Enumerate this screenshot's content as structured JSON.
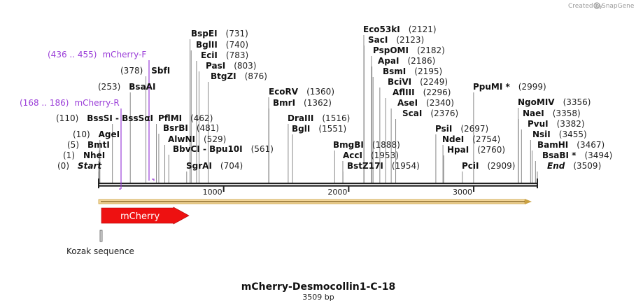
{
  "credit": {
    "text": "Created by",
    "brand": "SnapGene",
    "icon": "snapgene-logo-icon"
  },
  "plasmid": {
    "name": "mCherry-Desmocollin1-C-18",
    "length_label": "3509 bp",
    "length": 3509
  },
  "ruler": {
    "ticks": [
      {
        "pos": 1000,
        "label": "1000"
      },
      {
        "pos": 2000,
        "label": "2000"
      },
      {
        "pos": 3000,
        "label": "3000"
      }
    ]
  },
  "sites": [
    {
      "name": "Start",
      "pos_label": "(0)",
      "pos": 0,
      "italic": true
    },
    {
      "name": "NheI",
      "pos_label": "(1)",
      "pos": 1
    },
    {
      "name": "BmtI",
      "pos_label": "(5)",
      "pos": 5
    },
    {
      "name": "AgeI",
      "pos_label": "(10)",
      "pos": 10
    },
    {
      "name": "BssSI  -  BssSαI",
      "pos_label": "(110)",
      "pos": 110
    },
    {
      "name": "BsaAI",
      "pos_label": "(253)",
      "pos": 253
    },
    {
      "name": "SbfI",
      "pos_label": "(378)",
      "pos": 378
    },
    {
      "name": "PflMI",
      "pos_label": "(462)",
      "pos": 462
    },
    {
      "name": "BsrBI",
      "pos_label": "(481)",
      "pos": 481
    },
    {
      "name": "AlwNI",
      "pos_label": "(529)",
      "pos": 529
    },
    {
      "name": "BbvCI  -  Bpu10I",
      "pos_label": "(561)",
      "pos": 561
    },
    {
      "name": "SgrAI",
      "pos_label": "(704)",
      "pos": 704
    },
    {
      "name": "BspEI",
      "pos_label": "(731)",
      "pos": 731
    },
    {
      "name": "BglII",
      "pos_label": "(740)",
      "pos": 740
    },
    {
      "name": "EciI",
      "pos_label": "(783)",
      "pos": 783
    },
    {
      "name": "PasI",
      "pos_label": "(803)",
      "pos": 803
    },
    {
      "name": "BtgZI",
      "pos_label": "(876)",
      "pos": 876
    },
    {
      "name": "EcoRV",
      "pos_label": "(1360)",
      "pos": 1360
    },
    {
      "name": "BmrI",
      "pos_label": "(1362)",
      "pos": 1362
    },
    {
      "name": "DraIII",
      "pos_label": "(1516)",
      "pos": 1516
    },
    {
      "name": "BglI",
      "pos_label": "(1551)",
      "pos": 1551
    },
    {
      "name": "BmgBI",
      "pos_label": "(1888)",
      "pos": 1888
    },
    {
      "name": "AccI",
      "pos_label": "(1953)",
      "pos": 1953
    },
    {
      "name": "BstZ17I",
      "pos_label": "(1954)",
      "pos": 1954
    },
    {
      "name": "Eco53kI",
      "pos_label": "(2121)",
      "pos": 2121
    },
    {
      "name": "SacI",
      "pos_label": "(2123)",
      "pos": 2123
    },
    {
      "name": "PspOMI",
      "pos_label": "(2182)",
      "pos": 2182
    },
    {
      "name": "ApaI",
      "pos_label": "(2186)",
      "pos": 2186
    },
    {
      "name": "BsmI",
      "pos_label": "(2195)",
      "pos": 2195
    },
    {
      "name": "BciVI",
      "pos_label": "(2249)",
      "pos": 2249
    },
    {
      "name": "AflIII",
      "pos_label": "(2296)",
      "pos": 2296
    },
    {
      "name": "AseI",
      "pos_label": "(2340)",
      "pos": 2340
    },
    {
      "name": "ScaI",
      "pos_label": "(2376)",
      "pos": 2376
    },
    {
      "name": "PsiI",
      "pos_label": "(2697)",
      "pos": 2697
    },
    {
      "name": "NdeI",
      "pos_label": "(2754)",
      "pos": 2754
    },
    {
      "name": "HpaI",
      "pos_label": "(2760)",
      "pos": 2760
    },
    {
      "name": "PciI",
      "pos_label": "(2909)",
      "pos": 2909
    },
    {
      "name": "PpuMI *",
      "pos_label": "(2999)",
      "pos": 2999
    },
    {
      "name": "NgoMIV",
      "pos_label": "(3356)",
      "pos": 3356
    },
    {
      "name": "NaeI",
      "pos_label": "(3358)",
      "pos": 3358
    },
    {
      "name": "PvuI",
      "pos_label": "(3382)",
      "pos": 3382
    },
    {
      "name": "NsiI",
      "pos_label": "(3455)",
      "pos": 3455
    },
    {
      "name": "BamHI",
      "pos_label": "(3467)",
      "pos": 3467
    },
    {
      "name": "BsaBI *",
      "pos_label": "(3494)",
      "pos": 3494
    },
    {
      "name": "End",
      "pos_label": "(3509)",
      "pos": 3509,
      "italic": true
    }
  ],
  "primers": [
    {
      "name": "mCherry-F",
      "range_label": "(436 .. 455)",
      "start": 436,
      "end": 455,
      "strand": "forward"
    },
    {
      "name": "mCherry-R",
      "range_label": "(168 .. 186)",
      "start": 168,
      "end": 186,
      "strand": "reverse"
    }
  ],
  "features": [
    {
      "name": "mCherry",
      "start": 18,
      "end": 723,
      "direction": "forward"
    },
    {
      "name": "Kozak sequence",
      "start": 8,
      "end": 18
    }
  ],
  "colors": {
    "backbone": "#222222",
    "feature_red": "#ee1111",
    "orf_fill": "#f3d79a",
    "orf_stroke": "#caa142",
    "primer": "#9b3fd8",
    "site_line": "#888888",
    "credit": "#9a9a9a"
  }
}
